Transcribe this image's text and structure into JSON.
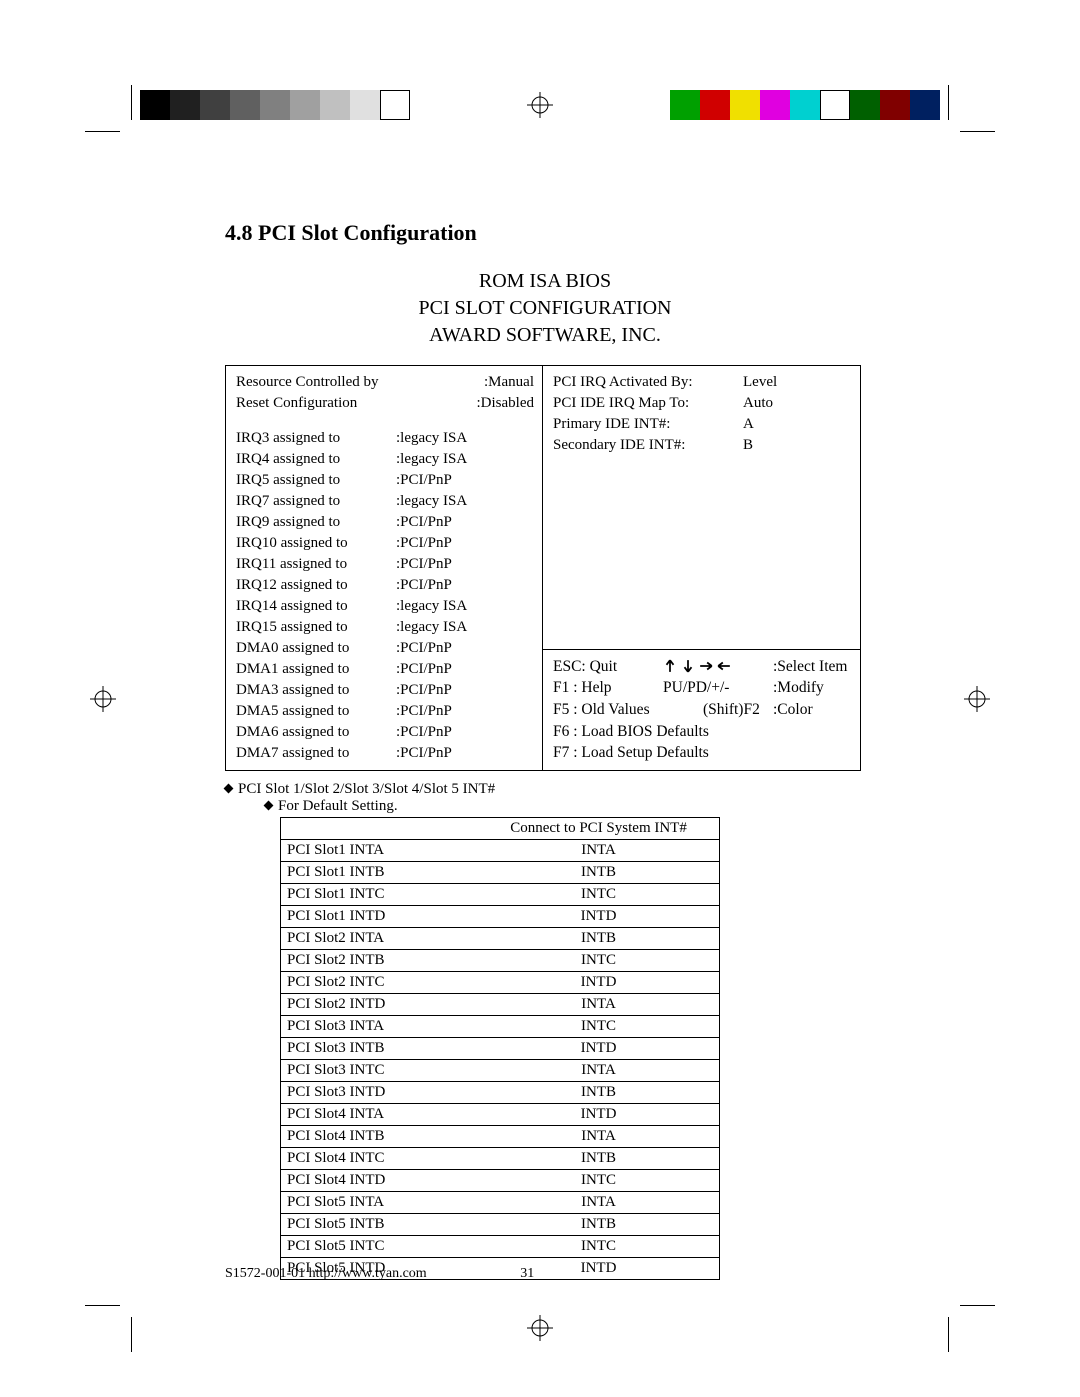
{
  "section_title": "4.8 PCI Slot Configuration",
  "bios_header": {
    "l1": "ROM ISA BIOS",
    "l2": "PCI SLOT CONFIGURATION",
    "l3": "AWARD SOFTWARE, INC."
  },
  "left_top": [
    {
      "k": "Resource Controlled by",
      "v": ":Manual"
    },
    {
      "k": "Reset Configuration",
      "v": ":Disabled"
    }
  ],
  "irq_list": [
    {
      "k": "IRQ3 assigned to",
      "v": ":legacy ISA"
    },
    {
      "k": "IRQ4 assigned to",
      "v": ":legacy ISA"
    },
    {
      "k": "IRQ5 assigned to",
      "v": ":PCI/PnP"
    },
    {
      "k": "IRQ7 assigned to",
      "v": ":legacy ISA"
    },
    {
      "k": "IRQ9 assigned to",
      "v": ":PCI/PnP"
    },
    {
      "k": "IRQ10 assigned to",
      "v": ":PCI/PnP"
    },
    {
      "k": "IRQ11 assigned to",
      "v": ":PCI/PnP"
    },
    {
      "k": "IRQ12 assigned to",
      "v": ":PCI/PnP"
    },
    {
      "k": "IRQ14 assigned to",
      "v": ":legacy ISA"
    },
    {
      "k": "IRQ15 assigned to",
      "v": ":legacy ISA"
    },
    {
      "k": "DMA0 assigned to",
      "v": ":PCI/PnP"
    },
    {
      "k": "DMA1 assigned to",
      "v": ":PCI/PnP"
    },
    {
      "k": "DMA3 assigned to",
      "v": ":PCI/PnP"
    },
    {
      "k": "DMA5 assigned to",
      "v": ":PCI/PnP"
    },
    {
      "k": "DMA6 assigned to",
      "v": ":PCI/PnP"
    },
    {
      "k": "DMA7 assigned to",
      "v": ":PCI/PnP"
    }
  ],
  "right_top": [
    {
      "k": "PCI IRQ Activated By:",
      "v": "Level"
    },
    {
      "k": "PCI   IDE IRQ Map To:",
      "v": "Auto"
    },
    {
      "k": "Primary IDE INT#:",
      "v": "A"
    },
    {
      "k": "Secondary IDE INT#:",
      "v": "B"
    }
  ],
  "help": {
    "r1": {
      "c1": "ESC: Quit",
      "c3": ":Select Item"
    },
    "r2": {
      "c1": "F1    : Help",
      "c2": "PU/PD/+/-",
      "c3": ":Modify"
    },
    "r3": {
      "c1": "F5    : Old Values",
      "c2": "(Shift)F2",
      "c3": ":Color"
    },
    "r4": {
      "c1": "F6    : Load BIOS Defaults"
    },
    "r5": {
      "c1": "F7    : Load Setup Defaults"
    }
  },
  "notes": {
    "n1": "PCI Slot 1/Slot 2/Slot 3/Slot 4/Slot 5 INT#",
    "n2": "For Default Setting."
  },
  "pci_table": {
    "header": "Connect   to PCI System INT#",
    "rows": [
      [
        "PCI Slot1 INTA",
        "INTA"
      ],
      [
        "PCI Slot1 INTB",
        "INTB"
      ],
      [
        "PCI Slot1 INTC",
        "INTC"
      ],
      [
        "PCI Slot1 INTD",
        "INTD"
      ],
      [
        "PCI Slot2 INTA",
        "INTB"
      ],
      [
        "PCI Slot2 INTB",
        "INTC"
      ],
      [
        "PCI Slot2 INTC",
        "INTD"
      ],
      [
        "PCI Slot2 INTD",
        "INTA"
      ],
      [
        "PCI Slot3 INTA",
        "INTC"
      ],
      [
        "PCI Slot3 INTB",
        "INTD"
      ],
      [
        "PCI Slot3 INTC",
        "INTA"
      ],
      [
        "PCI Slot3 INTD",
        "INTB"
      ],
      [
        "PCI Slot4 INTA",
        "INTD"
      ],
      [
        "PCI Slot4 INTB",
        "INTA"
      ],
      [
        "PCI Slot4 INTC",
        "INTB"
      ],
      [
        "PCI Slot4 INTD",
        "INTC"
      ],
      [
        "PCI Slot5 INTA",
        "INTA"
      ],
      [
        "PCI Slot5 INTB",
        "INTB"
      ],
      [
        "PCI Slot5 INTC",
        "INTC"
      ],
      [
        "PCI Slot5 INTD",
        "INTD"
      ]
    ]
  },
  "footer": {
    "text": "S1572-001-01 http://www.tyan.com",
    "page": "31"
  },
  "swatch_colors": {
    "left": [
      "#000000",
      "#202020",
      "#404040",
      "#606060",
      "#808080",
      "#a0a0a0",
      "#c0c0c0",
      "#e0e0e0",
      "#ffffff"
    ],
    "right": [
      "#00a000",
      "#d00000",
      "#f0e000",
      "#e000e0",
      "#00d0d0",
      "#ffffff",
      "#006000",
      "#800000",
      "#002060"
    ]
  }
}
